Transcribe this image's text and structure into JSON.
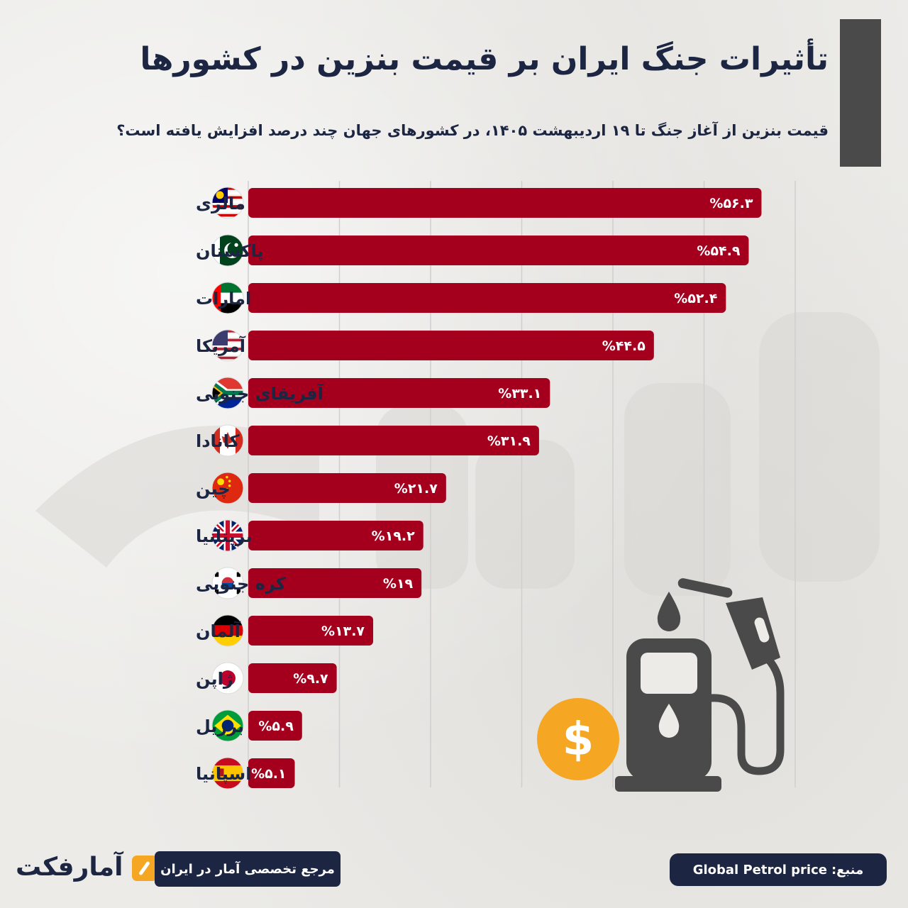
{
  "header": {
    "title": "تأثیرات جنگ ایران بر قیمت بنزین در کشورها",
    "subtitle": "قیمت بنزین از آغاز جنگ تا ۱۹ اردیبهشت ۱۴۰۵، در کشورهای جهان چند درصد افزایش یافته است؟"
  },
  "chart_data": {
    "type": "bar",
    "orientation": "horizontal",
    "categories": [
      "مالزی",
      "پاکستان",
      "امارات",
      "آمریکا",
      "آفریقای جنوبی",
      "کانادا",
      "چین",
      "بریتانیا",
      "کره جنوبی",
      "آلمان",
      "ژاپن",
      "برزیل",
      "اسپانیا"
    ],
    "values": [
      56.3,
      54.9,
      52.4,
      44.5,
      33.1,
      31.9,
      21.7,
      19.2,
      19,
      13.7,
      9.7,
      5.9,
      5.1
    ],
    "value_labels": [
      "%۵۶.۳",
      "%۵۴.۹",
      "%۵۲.۴",
      "%۴۴.۵",
      "%۳۳.۱",
      "%۳۱.۹",
      "%۲۱.۷",
      "%۱۹.۲",
      "%۱۹",
      "%۱۳.۷",
      "%۹.۷",
      "%۵.۹",
      "%۵.۱"
    ],
    "flags": [
      "malaysia-flag-icon",
      "pakistan-flag-icon",
      "uae-flag-icon",
      "usa-flag-icon",
      "south-africa-flag-icon",
      "canada-flag-icon",
      "china-flag-icon",
      "uk-flag-icon",
      "south-korea-flag-icon",
      "germany-flag-icon",
      "japan-flag-icon",
      "brazil-flag-icon",
      "spain-flag-icon"
    ],
    "xlim": [
      0,
      60
    ],
    "grid": true,
    "bar_color": "#a4001e"
  },
  "footer": {
    "logo_text": "آمارفکت",
    "tagline": "مرجع تخصصی آمار در ایران",
    "source_label": "منبع:",
    "source_value": "Global Petrol price"
  },
  "colors": {
    "navy": "#1c2541",
    "bar": "#a4001e",
    "accent": "#f5a623",
    "pump": "#4a4a4a"
  }
}
